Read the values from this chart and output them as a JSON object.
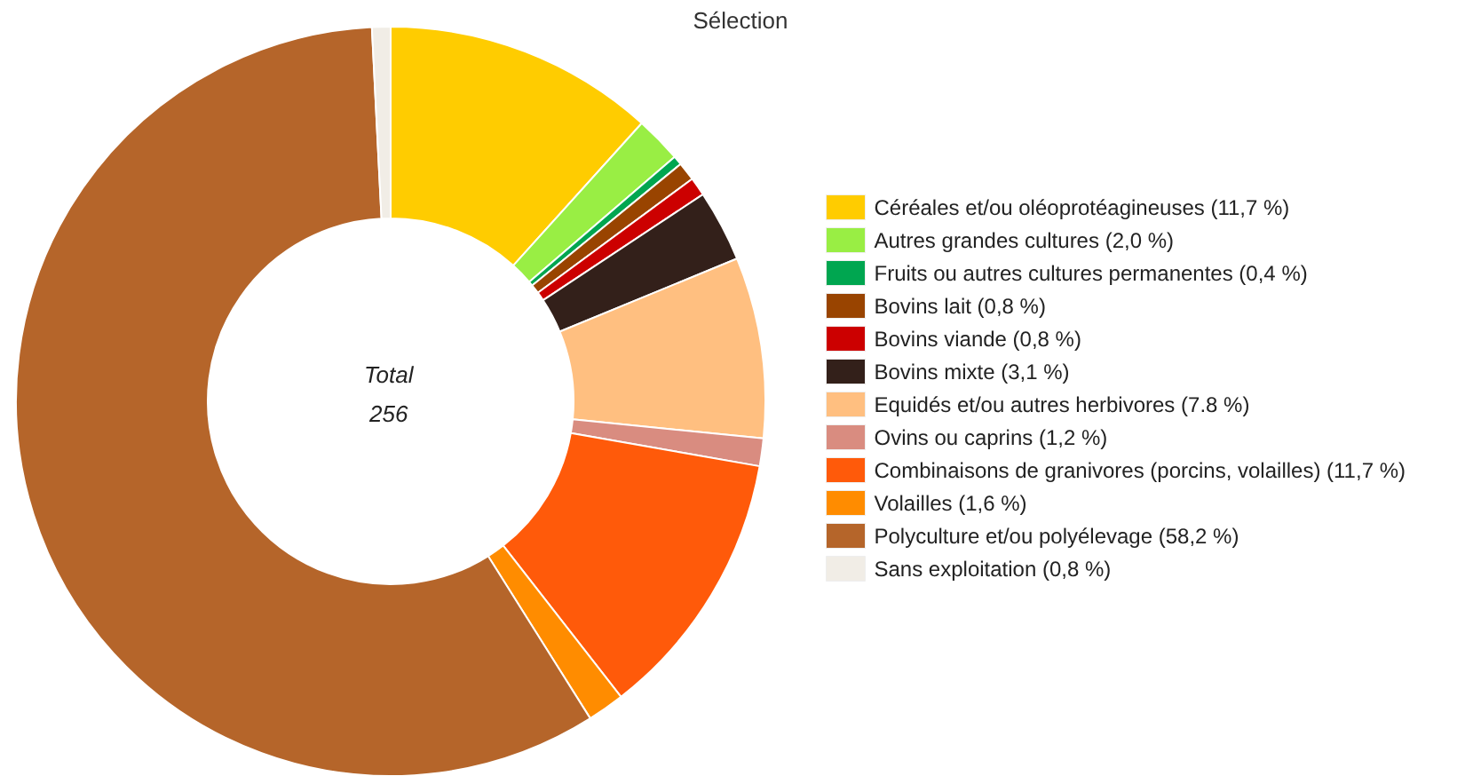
{
  "chart_data": {
    "type": "donut",
    "title": "Sélection",
    "categories": [
      "Céréales et/ou oléoprotéagineuses (11,7 %)",
      "Autres grandes cultures (2,0 %)",
      "Fruits ou autres cultures permanentes (0,4 %)",
      "Bovins lait (0,8 %)",
      "Bovins viande (0,8 %)",
      "Bovins mixte (3,1 %)",
      "Equidés et/ou autres herbivores (7.8 %)",
      "Ovins ou caprins (1,2 %)",
      "Combinaisons de granivores (porcins, volailles) (11,7 %)",
      "Volailles (1,6 %)",
      "Polyculture et/ou polyélevage (58,2 %)",
      "Sans exploitation (0,8 %)"
    ],
    "values": [
      11.7,
      2.0,
      0.4,
      0.8,
      0.8,
      3.1,
      7.8,
      1.2,
      11.7,
      1.6,
      58.2,
      0.8
    ],
    "colors": [
      "#ffcc00",
      "#99ee44",
      "#00a650",
      "#994400",
      "#cc0000",
      "#33201a",
      "#ffbf80",
      "#d98c80",
      "#ff5a0a",
      "#ff8c00",
      "#b5652a",
      "#f1ede6"
    ],
    "annotations": [
      "Total\n256"
    ],
    "legend": "right"
  }
}
